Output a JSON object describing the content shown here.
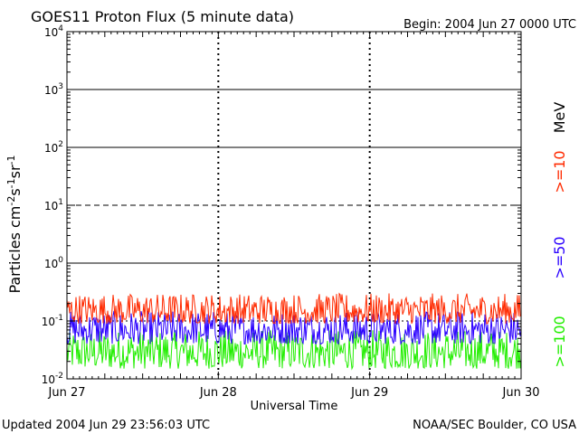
{
  "chart_data": {
    "type": "line",
    "title": "GOES11 Proton Flux (5 minute data)",
    "begin_label": "Begin: 2004 Jun 27 0000 UTC",
    "xlabel": "Universal Time",
    "ylabel": "Particles cm⁻²s⁻¹sr⁻¹",
    "ylabel_parts": {
      "main": "Particles cm",
      "p1": "-2",
      "s": "s",
      "p2": "-1",
      "sr": "sr",
      "p3": "-1"
    },
    "yscale": "log",
    "ylim": [
      0.01,
      10000
    ],
    "xlim": [
      "2004-06-27",
      "2004-06-30"
    ],
    "x_ticks": [
      "Jun 27",
      "Jun 28",
      "Jun 29",
      "Jun 30"
    ],
    "y_ticks": [
      {
        "base": "10",
        "exp": "-2"
      },
      {
        "base": "10",
        "exp": "-1"
      },
      {
        "base": "10",
        "exp": "0"
      },
      {
        "base": "10",
        "exp": "1"
      },
      {
        "base": "10",
        "exp": "2"
      },
      {
        "base": "10",
        "exp": "3"
      },
      {
        "base": "10",
        "exp": "4"
      }
    ],
    "reference_lines": {
      "solid": [
        1,
        100,
        1000
      ],
      "dashed": [
        10
      ]
    },
    "series": [
      {
        "name": ">=10",
        "color": "#ff2a00",
        "typical_range": [
          0.09,
          0.3
        ]
      },
      {
        "name": ">=50",
        "color": "#2a00ff",
        "typical_range": [
          0.04,
          0.15
        ]
      },
      {
        "name": ">=100",
        "color": "#22ee00",
        "typical_range": [
          0.015,
          0.07
        ]
      }
    ],
    "legend_unit": "MeV",
    "legend_position": "right"
  },
  "footer": {
    "updated": "Updated 2004 Jun 29 23:56:03 UTC",
    "source": "NOAA/SEC Boulder, CO USA"
  }
}
